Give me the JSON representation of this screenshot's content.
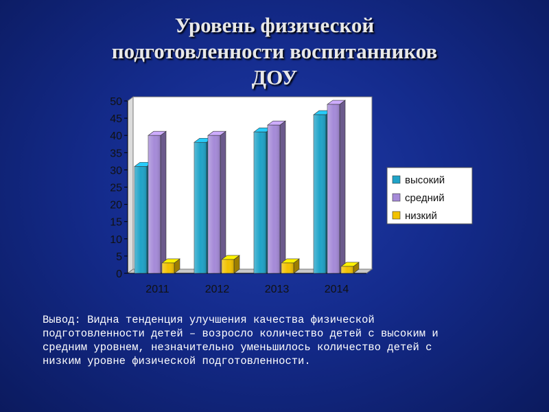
{
  "slide": {
    "title_lines": [
      "Уровень физической",
      "подготовленности воспитанников",
      "ДОУ"
    ],
    "conclusion_lines": [
      "Вывод: Видна тенденция  улучшения качества физической",
      "подготовленности детей – возросло количество детей с высоким и",
      "средним уровнем,  незначительно уменьшилось количество детей с",
      "низким уровне физической подготовленности."
    ]
  },
  "chart_data": {
    "type": "bar",
    "categories": [
      "2011",
      "2012",
      "2013",
      "2014"
    ],
    "series": [
      {
        "name": "высокий",
        "values": [
          31,
          38,
          41,
          46
        ],
        "color": "#1fa3c8"
      },
      {
        "name": "средний",
        "values": [
          40,
          40,
          43,
          49
        ],
        "color": "#a58ad8"
      },
      {
        "name": "низкий",
        "values": [
          3,
          4,
          3,
          2
        ],
        "color": "#f2c200"
      }
    ],
    "y_ticks": [
      "0",
      "5",
      "10",
      "15",
      "20",
      "25",
      "30",
      "35",
      "40",
      "45",
      "50"
    ],
    "ylim": [
      0,
      50
    ],
    "grid": false,
    "legend_position": "right",
    "plot_background": "#ffffff"
  }
}
